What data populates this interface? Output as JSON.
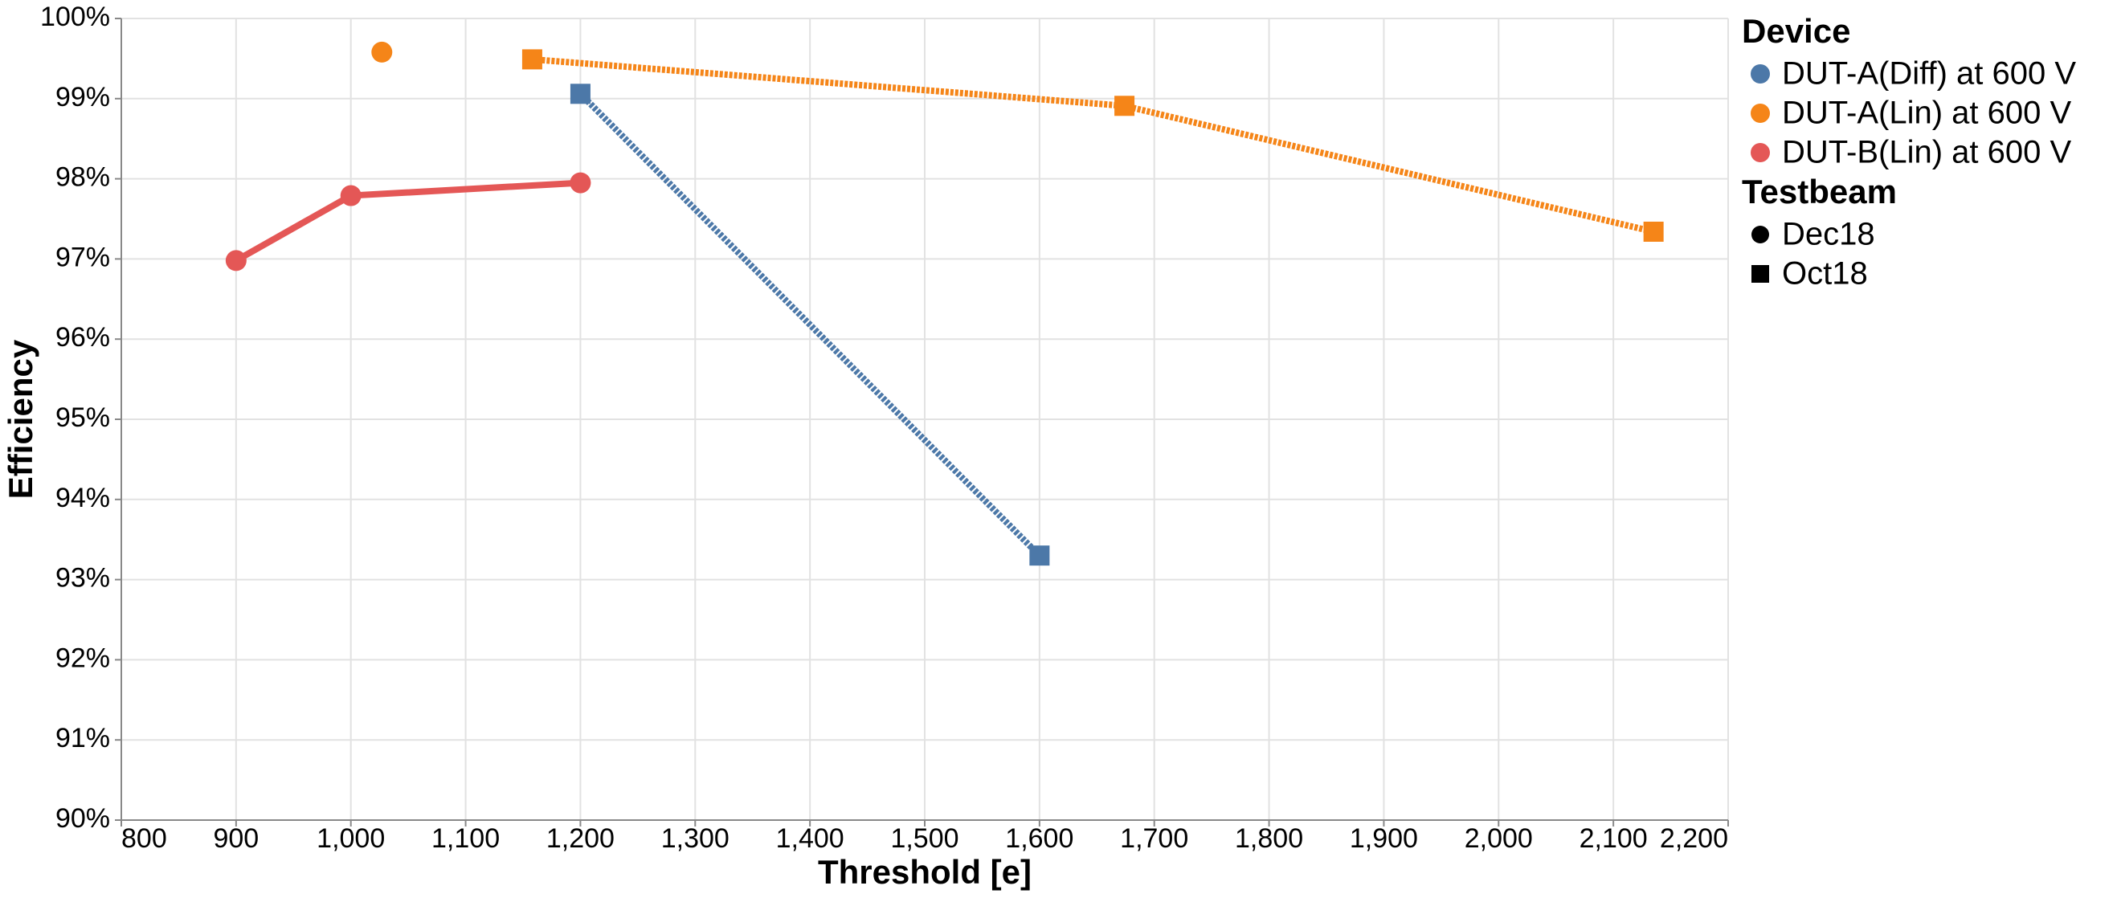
{
  "chart_data": {
    "type": "scatter-line",
    "x_label": "Threshold [e]",
    "y_label": "Efficiency",
    "xlim": [
      800,
      2200
    ],
    "xticks": [
      {
        "value": 800,
        "label": "800"
      },
      {
        "value": 900,
        "label": "900"
      },
      {
        "value": 1000,
        "label": "1,000"
      },
      {
        "value": 1100,
        "label": "1,100"
      },
      {
        "value": 1200,
        "label": "1,200"
      },
      {
        "value": 1300,
        "label": "1,300"
      },
      {
        "value": 1400,
        "label": "1,400"
      },
      {
        "value": 1500,
        "label": "1,500"
      },
      {
        "value": 1600,
        "label": "1,600"
      },
      {
        "value": 1700,
        "label": "1,700"
      },
      {
        "value": 1800,
        "label": "1,800"
      },
      {
        "value": 1900,
        "label": "1,900"
      },
      {
        "value": 2000,
        "label": "2,000"
      },
      {
        "value": 2100,
        "label": "2,100"
      },
      {
        "value": 2200,
        "label": "2,200"
      }
    ],
    "ylim": [
      90,
      100
    ],
    "yticks": [
      {
        "value": 90,
        "label": "90%"
      },
      {
        "value": 91,
        "label": "91%"
      },
      {
        "value": 92,
        "label": "92%"
      },
      {
        "value": 93,
        "label": "93%"
      },
      {
        "value": 94,
        "label": "94%"
      },
      {
        "value": 95,
        "label": "95%"
      },
      {
        "value": 96,
        "label": "96%"
      },
      {
        "value": 97,
        "label": "97%"
      },
      {
        "value": 98,
        "label": "98%"
      },
      {
        "value": 99,
        "label": "99%"
      },
      {
        "value": 100,
        "label": "100%"
      }
    ],
    "grid": true,
    "device_legend_title": "Device",
    "testbeam_legend_title": "Testbeam",
    "testbeams": [
      {
        "name": "Dec18",
        "shape": "circle",
        "line_style": "solid"
      },
      {
        "name": "Oct18",
        "shape": "square",
        "line_style": "dotted"
      }
    ],
    "series": [
      {
        "name": "DUT-A(Diff) at 600 V",
        "color": "#4c78a8",
        "groups": [
          {
            "testbeam": "Oct18",
            "x": [
              1200,
              1600
            ],
            "values": [
              99.06,
              93.3
            ]
          }
        ]
      },
      {
        "name": "DUT-A(Lin) at 600 V",
        "color": "#f58518",
        "groups": [
          {
            "testbeam": "Dec18",
            "x": [
              1027
            ],
            "values": [
              99.58
            ]
          },
          {
            "testbeam": "Oct18",
            "x": [
              1158,
              1674,
              2135
            ],
            "values": [
              99.49,
              98.91,
              97.34
            ]
          }
        ]
      },
      {
        "name": "DUT-B(Lin) at 600 V",
        "color": "#e45756",
        "groups": [
          {
            "testbeam": "Dec18",
            "x": [
              900,
              1000,
              1200
            ],
            "values": [
              96.98,
              97.79,
              97.95
            ]
          }
        ]
      }
    ]
  }
}
